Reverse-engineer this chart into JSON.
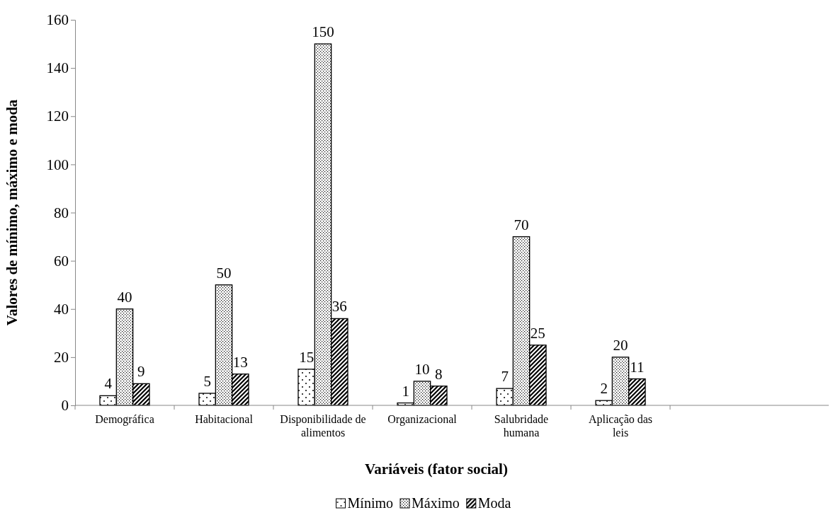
{
  "chart_data": {
    "type": "bar",
    "xlabel": "Variáveis (fator social)",
    "ylabel": "Valores de mínimo, máximo e moda",
    "categories": [
      "Demográfica",
      "Habitacional",
      "Disponibilidade de alimentos",
      "Organizacional",
      "Salubridade humana",
      "Aplicação das leis"
    ],
    "series": [
      {
        "name": "Mínimo",
        "color": "#000000",
        "values": [
          4,
          5,
          15,
          1,
          7,
          2
        ]
      },
      {
        "name": "Máximo",
        "color": "#000000",
        "values": [
          40,
          50,
          150,
          10,
          70,
          20
        ]
      },
      {
        "name": "Moda",
        "color": "#000000",
        "values": [
          9,
          13,
          36,
          8,
          25,
          11
        ]
      }
    ],
    "ylim": [
      0,
      160
    ],
    "yticks": [
      0,
      20,
      40,
      60,
      80,
      100,
      120,
      140,
      160
    ],
    "data_labels": true,
    "legend": "bottom"
  }
}
